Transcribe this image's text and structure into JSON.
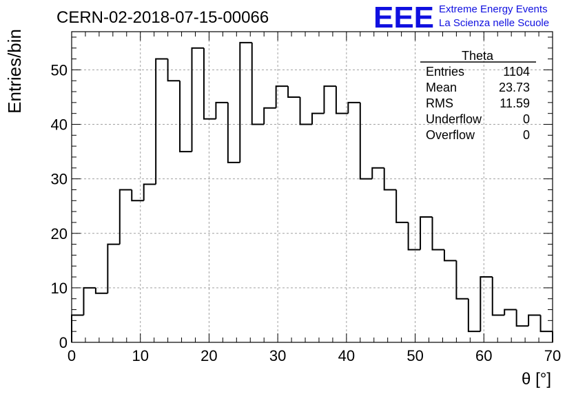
{
  "header": {
    "run_title": "CERN-02-2018-07-15-00066",
    "logo_text": "EEE",
    "logo_line1": "Extreme Energy Events",
    "logo_line2": "La Scienza nelle Scuole",
    "logo_color": "#1010e0"
  },
  "stats_box": {
    "title": "Theta",
    "rows": [
      {
        "label": "Entries",
        "value": "1104"
      },
      {
        "label": "Mean",
        "value": "23.73"
      },
      {
        "label": "RMS",
        "value": "11.59"
      },
      {
        "label": "Underflow",
        "value": "0"
      },
      {
        "label": "Overflow",
        "value": "0"
      }
    ]
  },
  "chart_data": {
    "type": "histogram",
    "xlabel": "θ [°]",
    "ylabel": "Entries/bin",
    "xlim": [
      0,
      70
    ],
    "ylim": [
      0,
      57
    ],
    "bin_width": 1.75,
    "bin_edges_start": 0,
    "x_ticks": [
      0,
      10,
      20,
      30,
      40,
      50,
      60,
      70
    ],
    "y_ticks": [
      0,
      10,
      20,
      30,
      40,
      50
    ],
    "grid": true,
    "line_color": "#000000",
    "values": [
      5,
      10,
      9,
      18,
      28,
      26,
      29,
      52,
      48,
      35,
      54,
      41,
      44,
      33,
      55,
      40,
      43,
      47,
      45,
      40,
      42,
      47,
      42,
      44,
      30,
      32,
      28,
      22,
      17,
      23,
      17,
      15,
      8,
      2,
      12,
      5,
      6,
      3,
      5,
      2,
      0
    ]
  }
}
